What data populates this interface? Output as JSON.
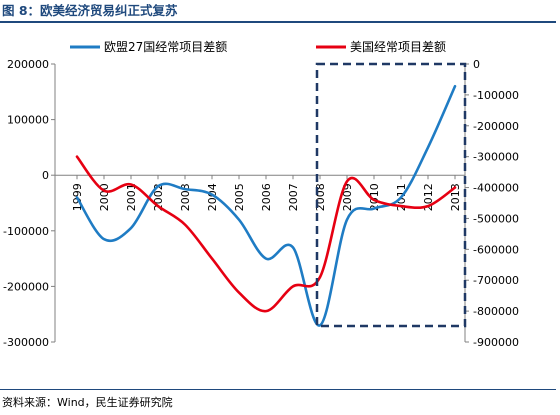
{
  "figure": {
    "title": "图 8：欧美经济贸易纠正式复苏",
    "source": "资料来源：Wind，民生证券研究院"
  },
  "chart_data": {
    "type": "line",
    "title": "",
    "categories": [
      "1999",
      "2000",
      "2001",
      "2002",
      "2003",
      "2004",
      "2005",
      "2006",
      "2007",
      "2008",
      "2009",
      "2010",
      "2011",
      "2012",
      "2013"
    ],
    "series": [
      {
        "name": "欧盟27国经常项目差额",
        "axis": "left",
        "color": "#1f7cc4",
        "values": [
          -40000,
          -115000,
          -95000,
          -20000,
          -25000,
          -35000,
          -80000,
          -150000,
          -130000,
          -270000,
          -80000,
          -60000,
          -40000,
          50000,
          160000
        ]
      },
      {
        "name": "美国经常项目差额",
        "axis": "right",
        "color": "#e60012",
        "values": [
          -300000,
          -410000,
          -390000,
          -460000,
          -520000,
          -630000,
          -740000,
          -800000,
          -720000,
          -690000,
          -380000,
          -440000,
          -460000,
          -460000,
          -400000
        ]
      }
    ],
    "y_left": {
      "min": -300000,
      "max": 200000,
      "ticks": [
        "200000",
        "100000",
        "0",
        "-100000",
        "-200000",
        "-300000"
      ]
    },
    "y_right": {
      "min": -900000,
      "max": 0,
      "ticks": [
        "0",
        "-100000",
        "-200000",
        "-300000",
        "-400000",
        "-500000",
        "-600000",
        "-700000",
        "-800000",
        "-900000"
      ]
    },
    "legend_position": "top",
    "highlight_range": [
      "2008",
      "2013"
    ],
    "grid": false
  }
}
